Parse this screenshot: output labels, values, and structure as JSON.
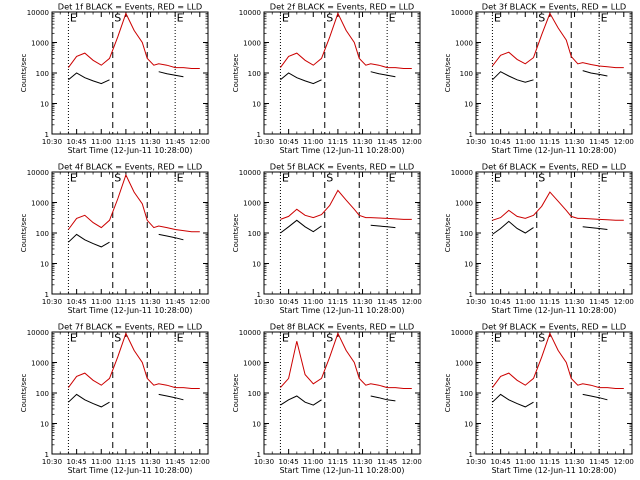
{
  "figure": {
    "ylabel": "Counts/sec",
    "xlabel": "Start Time (12-Jun-11 10:28:00)",
    "x_ticks": [
      "10:30",
      "10:45",
      "11:00",
      "11:15",
      "11:30",
      "11:45",
      "12:00"
    ],
    "y_ticks": [
      "1",
      "10",
      "100",
      "1000",
      "10000"
    ],
    "event_letters": [
      "E",
      "S",
      "E"
    ],
    "colors": {
      "events": "#000000",
      "lld": "#cc0000"
    }
  },
  "chart_data": [
    {
      "type": "line",
      "title": "Det 1f BLACK = Events, RED = LLD",
      "yscale": "log",
      "ylim": [
        1,
        10000
      ],
      "x": [
        "10:30",
        "10:35",
        "10:40",
        "10:45",
        "10:50",
        "10:55",
        "11:00",
        "11:05",
        "11:10",
        "11:15",
        "11:20",
        "11:25",
        "11:28",
        "11:32",
        "11:35",
        "11:40",
        "11:45",
        "11:50",
        "11:55",
        "12:00",
        "12:05"
      ],
      "series": [
        {
          "name": "Events",
          "values": [
            null,
            null,
            60,
            100,
            70,
            55,
            45,
            60,
            null,
            null,
            null,
            null,
            null,
            null,
            110,
            95,
            85,
            75,
            null,
            null,
            null
          ]
        },
        {
          "name": "LLD",
          "values": [
            null,
            null,
            150,
            350,
            450,
            260,
            180,
            300,
            1500,
            9000,
            2500,
            1000,
            300,
            180,
            200,
            180,
            150,
            150,
            140,
            140,
            null
          ]
        }
      ],
      "markers": {
        "dotted": [
          "10:40",
          "11:45"
        ],
        "dashed": [
          "11:07",
          "11:28"
        ]
      }
    },
    {
      "type": "line",
      "title": "Det 2f BLACK = Events, RED = LLD",
      "yscale": "log",
      "ylim": [
        1,
        10000
      ],
      "x": [
        "10:30",
        "10:35",
        "10:40",
        "10:45",
        "10:50",
        "10:55",
        "11:00",
        "11:05",
        "11:10",
        "11:15",
        "11:20",
        "11:25",
        "11:28",
        "11:32",
        "11:35",
        "11:40",
        "11:45",
        "11:50",
        "11:55",
        "12:00",
        "12:05"
      ],
      "series": [
        {
          "name": "Events",
          "values": [
            null,
            null,
            60,
            100,
            70,
            55,
            45,
            60,
            null,
            null,
            null,
            null,
            null,
            null,
            110,
            95,
            85,
            75,
            null,
            null,
            null
          ]
        },
        {
          "name": "LLD",
          "values": [
            null,
            null,
            150,
            350,
            450,
            260,
            180,
            300,
            1500,
            9000,
            2500,
            1000,
            300,
            180,
            200,
            180,
            150,
            150,
            140,
            140,
            null
          ]
        }
      ],
      "markers": {
        "dotted": [
          "10:40",
          "11:45"
        ],
        "dashed": [
          "11:07",
          "11:28"
        ]
      }
    },
    {
      "type": "line",
      "title": "Det 3f BLACK = Events, RED = LLD",
      "yscale": "log",
      "ylim": [
        1,
        10000
      ],
      "x": [
        "10:30",
        "10:35",
        "10:40",
        "10:45",
        "10:50",
        "10:55",
        "11:00",
        "11:05",
        "11:10",
        "11:15",
        "11:20",
        "11:25",
        "11:28",
        "11:32",
        "11:35",
        "11:40",
        "11:45",
        "11:50",
        "11:55",
        "12:00",
        "12:05"
      ],
      "series": [
        {
          "name": "Events",
          "values": [
            null,
            null,
            60,
            110,
            80,
            60,
            50,
            60,
            null,
            null,
            null,
            null,
            null,
            null,
            120,
            100,
            90,
            80,
            null,
            null,
            null
          ]
        },
        {
          "name": "LLD",
          "values": [
            null,
            null,
            170,
            380,
            480,
            280,
            200,
            320,
            1800,
            9000,
            3000,
            1200,
            350,
            200,
            220,
            190,
            170,
            160,
            150,
            150,
            null
          ]
        }
      ],
      "markers": {
        "dotted": [
          "10:40",
          "11:45"
        ],
        "dashed": [
          "11:07",
          "11:28"
        ]
      }
    },
    {
      "type": "line",
      "title": "Det 4f BLACK = Events, RED = LLD",
      "yscale": "log",
      "ylim": [
        1,
        10000
      ],
      "x": [
        "10:30",
        "10:35",
        "10:40",
        "10:45",
        "10:50",
        "10:55",
        "11:00",
        "11:05",
        "11:10",
        "11:15",
        "11:20",
        "11:25",
        "11:28",
        "11:32",
        "11:35",
        "11:40",
        "11:45",
        "11:50",
        "11:55",
        "12:00",
        "12:05"
      ],
      "series": [
        {
          "name": "Events",
          "values": [
            null,
            null,
            50,
            90,
            60,
            45,
            35,
            50,
            null,
            null,
            null,
            null,
            null,
            null,
            90,
            80,
            70,
            60,
            null,
            null,
            null
          ]
        },
        {
          "name": "LLD",
          "values": [
            null,
            null,
            130,
            300,
            380,
            220,
            150,
            260,
            1300,
            8000,
            2200,
            900,
            260,
            150,
            170,
            150,
            130,
            120,
            110,
            110,
            null
          ]
        }
      ],
      "markers": {
        "dotted": [
          "10:40",
          "11:45"
        ],
        "dashed": [
          "11:07",
          "11:28"
        ]
      }
    },
    {
      "type": "line",
      "title": "Det 5f BLACK = Events, RED = LLD",
      "yscale": "log",
      "ylim": [
        1,
        10000
      ],
      "x": [
        "10:30",
        "10:35",
        "10:40",
        "10:45",
        "10:50",
        "10:55",
        "11:00",
        "11:05",
        "11:10",
        "11:15",
        "11:20",
        "11:25",
        "11:28",
        "11:32",
        "11:35",
        "11:40",
        "11:45",
        "11:50",
        "11:55",
        "12:00",
        "12:05"
      ],
      "series": [
        {
          "name": "Events",
          "values": [
            null,
            null,
            100,
            160,
            260,
            160,
            110,
            170,
            null,
            null,
            null,
            null,
            null,
            null,
            180,
            170,
            160,
            150,
            null,
            null,
            null
          ]
        },
        {
          "name": "LLD",
          "values": [
            null,
            null,
            280,
            350,
            600,
            380,
            320,
            400,
            800,
            2500,
            1200,
            600,
            380,
            320,
            320,
            310,
            300,
            290,
            280,
            280,
            null
          ]
        }
      ],
      "markers": {
        "dotted": [
          "10:40",
          "11:45"
        ],
        "dashed": [
          "11:07",
          "11:28"
        ]
      }
    },
    {
      "type": "line",
      "title": "Det 6f BLACK = Events, RED = LLD",
      "yscale": "log",
      "ylim": [
        1,
        10000
      ],
      "x": [
        "10:30",
        "10:35",
        "10:40",
        "10:45",
        "10:50",
        "10:55",
        "11:00",
        "11:05",
        "11:10",
        "11:15",
        "11:20",
        "11:25",
        "11:28",
        "11:32",
        "11:35",
        "11:40",
        "11:45",
        "11:50",
        "11:55",
        "12:00",
        "12:05"
      ],
      "series": [
        {
          "name": "Events",
          "values": [
            null,
            null,
            90,
            140,
            240,
            140,
            100,
            150,
            null,
            null,
            null,
            null,
            null,
            null,
            160,
            150,
            140,
            130,
            null,
            null,
            null
          ]
        },
        {
          "name": "LLD",
          "values": [
            null,
            null,
            260,
            320,
            550,
            350,
            300,
            380,
            750,
            2200,
            1100,
            550,
            350,
            300,
            300,
            290,
            280,
            270,
            260,
            260,
            null
          ]
        }
      ],
      "markers": {
        "dotted": [
          "10:40",
          "11:45"
        ],
        "dashed": [
          "11:07",
          "11:28"
        ]
      }
    },
    {
      "type": "line",
      "title": "Det 7f BLACK = Events, RED = LLD",
      "yscale": "log",
      "ylim": [
        1,
        10000
      ],
      "x": [
        "10:30",
        "10:35",
        "10:40",
        "10:45",
        "10:50",
        "10:55",
        "11:00",
        "11:05",
        "11:10",
        "11:15",
        "11:20",
        "11:25",
        "11:28",
        "11:32",
        "11:35",
        "11:40",
        "11:45",
        "11:50",
        "11:55",
        "12:00",
        "12:05"
      ],
      "series": [
        {
          "name": "Events",
          "values": [
            null,
            null,
            50,
            90,
            60,
            45,
            35,
            50,
            null,
            null,
            null,
            null,
            null,
            null,
            90,
            80,
            70,
            60,
            null,
            null,
            null
          ]
        },
        {
          "name": "LLD",
          "values": [
            null,
            null,
            150,
            350,
            450,
            260,
            180,
            300,
            1500,
            9000,
            2500,
            1000,
            300,
            180,
            200,
            180,
            150,
            150,
            140,
            140,
            null
          ]
        }
      ],
      "markers": {
        "dotted": [
          "10:40",
          "11:45"
        ],
        "dashed": [
          "11:07",
          "11:28"
        ]
      }
    },
    {
      "type": "line",
      "title": "Det 8f BLACK = Events, RED = LLD",
      "yscale": "log",
      "ylim": [
        1,
        10000
      ],
      "x": [
        "10:30",
        "10:35",
        "10:40",
        "10:45",
        "10:50",
        "10:55",
        "11:00",
        "11:05",
        "11:10",
        "11:15",
        "11:20",
        "11:25",
        "11:28",
        "11:32",
        "11:35",
        "11:40",
        "11:45",
        "11:50",
        "11:55",
        "12:00",
        "12:05"
      ],
      "series": [
        {
          "name": "Events",
          "values": [
            null,
            null,
            40,
            60,
            80,
            50,
            40,
            60,
            null,
            null,
            null,
            null,
            null,
            null,
            80,
            70,
            60,
            55,
            null,
            null,
            null
          ]
        },
        {
          "name": "LLD",
          "values": [
            null,
            null,
            150,
            300,
            5000,
            400,
            200,
            300,
            1500,
            9000,
            2500,
            1000,
            300,
            180,
            200,
            180,
            150,
            150,
            140,
            140,
            null
          ]
        }
      ],
      "markers": {
        "dotted": [
          "10:40",
          "11:45"
        ],
        "dashed": [
          "11:07",
          "11:28"
        ]
      }
    },
    {
      "type": "line",
      "title": "Det 9f BLACK = Events, RED = LLD",
      "yscale": "log",
      "ylim": [
        1,
        10000
      ],
      "x": [
        "10:30",
        "10:35",
        "10:40",
        "10:45",
        "10:50",
        "10:55",
        "11:00",
        "11:05",
        "11:10",
        "11:15",
        "11:20",
        "11:25",
        "11:28",
        "11:32",
        "11:35",
        "11:40",
        "11:45",
        "11:50",
        "11:55",
        "12:00",
        "12:05"
      ],
      "series": [
        {
          "name": "Events",
          "values": [
            null,
            null,
            50,
            90,
            60,
            45,
            35,
            50,
            null,
            null,
            null,
            null,
            null,
            null,
            90,
            80,
            70,
            60,
            null,
            null,
            null
          ]
        },
        {
          "name": "LLD",
          "values": [
            null,
            null,
            150,
            350,
            450,
            260,
            180,
            300,
            1500,
            9000,
            2500,
            1000,
            300,
            180,
            200,
            180,
            150,
            150,
            140,
            140,
            null
          ]
        }
      ],
      "markers": {
        "dotted": [
          "10:40",
          "11:45"
        ],
        "dashed": [
          "11:07",
          "11:28"
        ]
      }
    }
  ]
}
